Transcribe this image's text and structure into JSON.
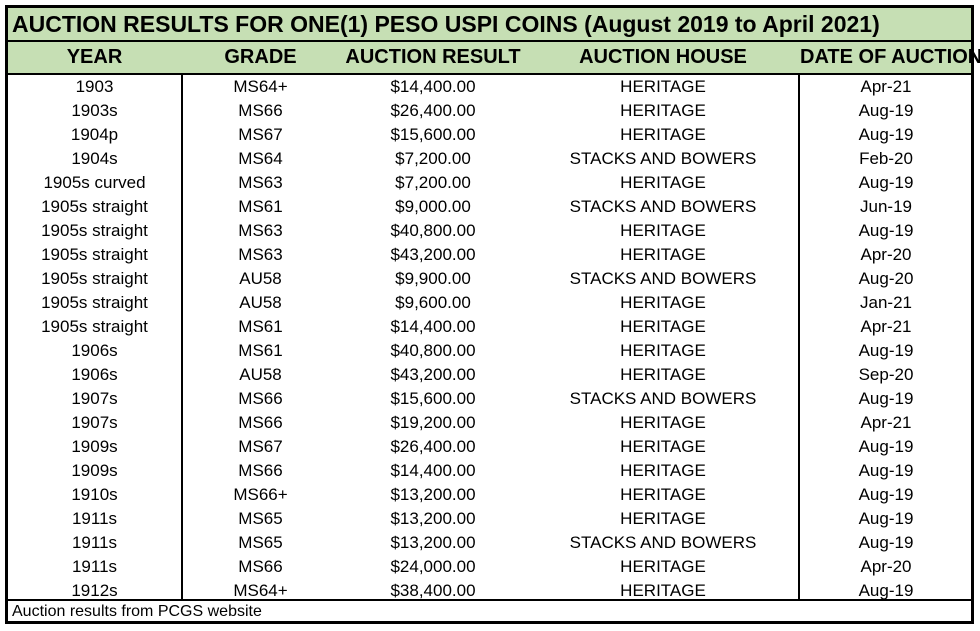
{
  "title": "AUCTION RESULTS FOR ONE(1) PESO USPI COINS (August 2019 to April 2021)",
  "columns": [
    "YEAR",
    "GRADE",
    "AUCTION RESULT",
    "AUCTION HOUSE",
    "DATE OF AUCTION"
  ],
  "rows": [
    [
      "1903",
      "MS64+",
      "$14,400.00",
      "HERITAGE",
      "Apr-21"
    ],
    [
      "1903s",
      "MS66",
      "$26,400.00",
      "HERITAGE",
      "Aug-19"
    ],
    [
      "1904p",
      "MS67",
      "$15,600.00",
      "HERITAGE",
      "Aug-19"
    ],
    [
      "1904s",
      "MS64",
      "$7,200.00",
      "STACKS AND BOWERS",
      "Feb-20"
    ],
    [
      "1905s curved",
      "MS63",
      "$7,200.00",
      "HERITAGE",
      "Aug-19"
    ],
    [
      "1905s straight",
      "MS61",
      "$9,000.00",
      "STACKS AND BOWERS",
      "Jun-19"
    ],
    [
      "1905s straight",
      "MS63",
      "$40,800.00",
      "HERITAGE",
      "Aug-19"
    ],
    [
      "1905s straight",
      "MS63",
      "$43,200.00",
      "HERITAGE",
      "Apr-20"
    ],
    [
      "1905s straight",
      "AU58",
      "$9,900.00",
      "STACKS AND BOWERS",
      "Aug-20"
    ],
    [
      "1905s straight",
      "AU58",
      "$9,600.00",
      "HERITAGE",
      "Jan-21"
    ],
    [
      "1905s straight",
      "MS61",
      "$14,400.00",
      "HERITAGE",
      "Apr-21"
    ],
    [
      "1906s",
      "MS61",
      "$40,800.00",
      "HERITAGE",
      "Aug-19"
    ],
    [
      "1906s",
      "AU58",
      "$43,200.00",
      "HERITAGE",
      "Sep-20"
    ],
    [
      "1907s",
      "MS66",
      "$15,600.00",
      "STACKS AND BOWERS",
      "Aug-19"
    ],
    [
      "1907s",
      "MS66",
      "$19,200.00",
      "HERITAGE",
      "Apr-21"
    ],
    [
      "1909s",
      "MS67",
      "$26,400.00",
      "HERITAGE",
      "Aug-19"
    ],
    [
      "1909s",
      "MS66",
      "$14,400.00",
      "HERITAGE",
      "Aug-19"
    ],
    [
      "1910s",
      "MS66+",
      "$13,200.00",
      "HERITAGE",
      "Aug-19"
    ],
    [
      "1911s",
      "MS65",
      "$13,200.00",
      "HERITAGE",
      "Aug-19"
    ],
    [
      "1911s",
      "MS65",
      "$13,200.00",
      "STACKS AND BOWERS",
      "Aug-19"
    ],
    [
      "1911s",
      "MS66",
      "$24,000.00",
      "HERITAGE",
      "Apr-20"
    ],
    [
      "1912s",
      "MS64+",
      "$38,400.00",
      "HERITAGE",
      "Aug-19"
    ]
  ],
  "footer": "Auction results from PCGS website",
  "colors": {
    "header_bg": "#c6dfb4",
    "border": "#000000"
  }
}
